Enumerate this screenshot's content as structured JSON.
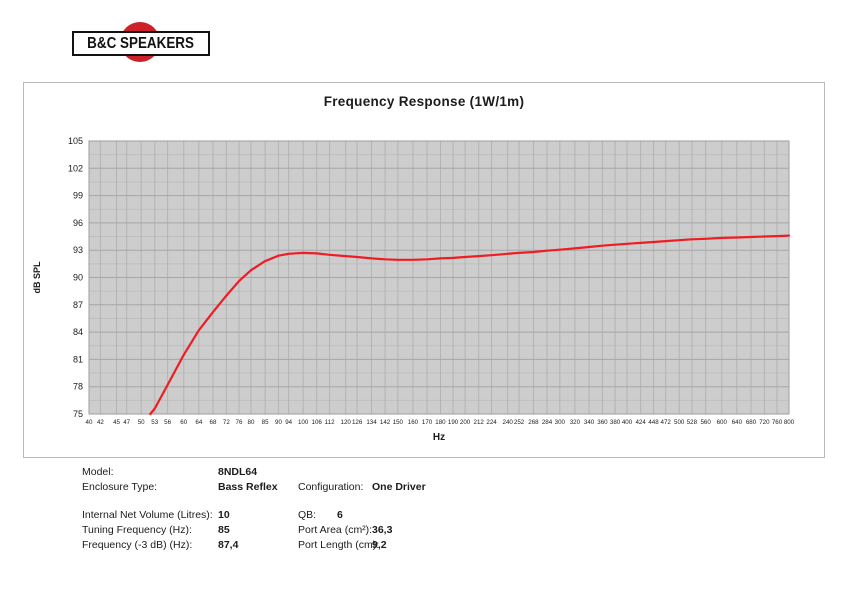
{
  "logo": {
    "text": "B&C SPEAKERS",
    "circle_color": "#cc2128",
    "box_border_color": "#121212"
  },
  "chart_data": {
    "type": "line",
    "title": "Frequency Response (1W/1m)",
    "xlabel": "Hz",
    "ylabel": "dB SPL",
    "x_scale": "log",
    "xlim": [
      40,
      800
    ],
    "ylim": [
      75,
      105
    ],
    "grid": "on",
    "legend": "none",
    "y_ticks": [
      105,
      102,
      99,
      96,
      93,
      90,
      87,
      84,
      81,
      78,
      75
    ],
    "x_ticks": [
      40,
      42,
      45,
      47,
      50,
      53,
      56,
      60,
      64,
      68,
      72,
      76,
      80,
      85,
      90,
      94,
      100,
      106,
      112,
      120,
      126,
      134,
      142,
      150,
      160,
      170,
      180,
      190,
      200,
      212,
      224,
      240,
      252,
      268,
      284,
      300,
      320,
      340,
      360,
      380,
      400,
      424,
      448,
      472,
      500,
      528,
      560,
      600,
      640,
      680,
      720,
      760,
      800
    ],
    "plot_bg": "#cdcdcd",
    "grid_minor_color": "#bfbfbf",
    "grid_major_color": "#a6a6a6",
    "grid_vert_color": "#b3b3b3",
    "plot_border_color": "#9e9e9e",
    "series": [
      {
        "name": "SPL (1W/1m)",
        "color": "#ef1c23",
        "points": [
          [
            52,
            75.0
          ],
          [
            53,
            75.6
          ],
          [
            56,
            78.2
          ],
          [
            60,
            81.5
          ],
          [
            64,
            84.2
          ],
          [
            68,
            86.2
          ],
          [
            72,
            88.0
          ],
          [
            76,
            89.6
          ],
          [
            80,
            90.8
          ],
          [
            85,
            91.8
          ],
          [
            90,
            92.4
          ],
          [
            94,
            92.6
          ],
          [
            100,
            92.7
          ],
          [
            106,
            92.65
          ],
          [
            112,
            92.5
          ],
          [
            120,
            92.35
          ],
          [
            126,
            92.25
          ],
          [
            134,
            92.1
          ],
          [
            142,
            92.0
          ],
          [
            150,
            91.95
          ],
          [
            160,
            91.95
          ],
          [
            170,
            92.0
          ],
          [
            180,
            92.1
          ],
          [
            190,
            92.15
          ],
          [
            200,
            92.25
          ],
          [
            212,
            92.35
          ],
          [
            224,
            92.45
          ],
          [
            240,
            92.6
          ],
          [
            252,
            92.7
          ],
          [
            268,
            92.8
          ],
          [
            284,
            92.95
          ],
          [
            300,
            93.05
          ],
          [
            320,
            93.2
          ],
          [
            340,
            93.35
          ],
          [
            360,
            93.5
          ],
          [
            380,
            93.6
          ],
          [
            400,
            93.7
          ],
          [
            424,
            93.8
          ],
          [
            448,
            93.9
          ],
          [
            472,
            94.0
          ],
          [
            500,
            94.1
          ],
          [
            528,
            94.2
          ],
          [
            560,
            94.25
          ],
          [
            600,
            94.35
          ],
          [
            640,
            94.4
          ],
          [
            680,
            94.45
          ],
          [
            720,
            94.5
          ],
          [
            760,
            94.55
          ],
          [
            800,
            94.6
          ]
        ]
      }
    ]
  },
  "specs": {
    "top": [
      {
        "label": "Model:",
        "value": "8NDL64",
        "label2": "",
        "value2": ""
      },
      {
        "label": "Enclosure Type:",
        "value": "Bass Reflex",
        "label2": "Configuration:",
        "value2": "One Driver"
      }
    ],
    "bottom": [
      {
        "label": "Internal Net Volume (Litres):",
        "value": "10",
        "label2": "QB:",
        "value2": "6"
      },
      {
        "label": "Tuning Frequency (Hz):",
        "value": "85",
        "label2": "Port Area (cm²):",
        "value2": "36,3"
      },
      {
        "label": "Frequency (-3 dB) (Hz):",
        "value": "87,4",
        "label2": "Port Length (cm):",
        "value2": "9,2"
      }
    ]
  }
}
